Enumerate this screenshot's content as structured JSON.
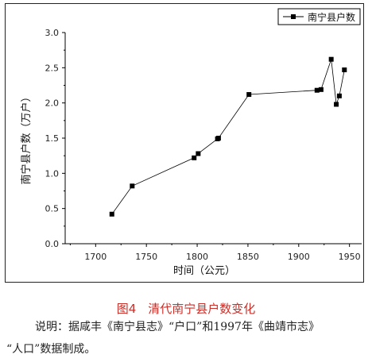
{
  "chart_data": {
    "type": "line",
    "xlabel": "时间（公元）",
    "ylabel": "南宁县户数（万户）",
    "xlim": [
      1670,
      1962
    ],
    "ylim": [
      0.0,
      3.0
    ],
    "xticks": [
      1700,
      1750,
      1800,
      1850,
      1900,
      1950
    ],
    "yticks": [
      0.0,
      0.5,
      1.0,
      1.5,
      2.0,
      2.5,
      3.0
    ],
    "ytick_labels": [
      "0.0",
      "0.5",
      "1.0",
      "1.5",
      "2.0",
      "2.5",
      "3.0"
    ],
    "legend_position": "top-right",
    "grid": false,
    "series": [
      {
        "name": "南宁县户数",
        "color": "#000000",
        "marker": "square",
        "x": [
          1716,
          1736,
          1797,
          1801,
          1820,
          1821,
          1851,
          1918,
          1922,
          1932,
          1937,
          1940,
          1945
        ],
        "y": [
          0.42,
          0.82,
          1.22,
          1.28,
          1.49,
          1.5,
          2.12,
          2.18,
          2.19,
          2.62,
          1.98,
          2.1,
          2.47
        ]
      }
    ]
  },
  "figure": {
    "caption": "图4　清代南宁县户数变化",
    "note_line1": "说明：据咸丰《南宁县志》“户口”和1997年《曲靖市志》",
    "note_line2": "“人口”数据制成。"
  }
}
